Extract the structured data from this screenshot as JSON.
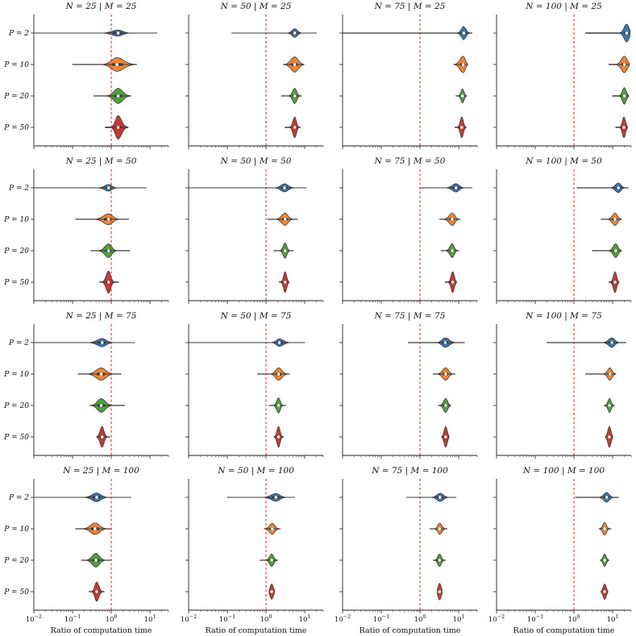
{
  "chart_data": {
    "type": "violin",
    "xscale": "log",
    "xlim": [
      0.01,
      30
    ],
    "xticks": [
      {
        "value": 0.01,
        "base": "10",
        "exp": "−2"
      },
      {
        "value": 0.1,
        "base": "10",
        "exp": "−1"
      },
      {
        "value": 1,
        "base": "10",
        "exp": "0"
      },
      {
        "value": 10,
        "base": "10",
        "exp": "1"
      }
    ],
    "xlabel": "Ratio of computation time",
    "reference_line": 1,
    "row_labels": [
      "P = 2",
      "P = 10",
      "P = 20",
      "P = 50"
    ],
    "colors": [
      "#3a76af",
      "#ef8536",
      "#519e3e",
      "#c53a32"
    ],
    "panels": [
      {
        "title": "N = 25 | M = 25",
        "series": [
          {
            "min": 0.01,
            "q1": 1.1,
            "median": 1.5,
            "q3": 1.9,
            "max": 15,
            "width": 0.22
          },
          {
            "min": 0.1,
            "q1": 1.05,
            "median": 1.4,
            "q3": 2.0,
            "max": 4.5,
            "width": 0.5
          },
          {
            "min": 0.35,
            "q1": 1.2,
            "median": 1.5,
            "q3": 1.9,
            "max": 3.2,
            "width": 0.55
          },
          {
            "min": 0.7,
            "q1": 1.3,
            "median": 1.5,
            "q3": 1.8,
            "max": 2.7,
            "width": 0.85
          }
        ]
      },
      {
        "title": "N = 50 | M = 25",
        "series": [
          {
            "min": 0.13,
            "q1": 4.8,
            "median": 5.5,
            "q3": 6.3,
            "max": 20,
            "width": 0.32
          },
          {
            "min": 2.8,
            "q1": 4.5,
            "median": 5.5,
            "q3": 6.6,
            "max": 9.5,
            "width": 0.55
          },
          {
            "min": 2.5,
            "q1": 4.9,
            "median": 5.5,
            "q3": 6.1,
            "max": 8.2,
            "width": 0.55
          },
          {
            "min": 3.1,
            "q1": 5.0,
            "median": 5.5,
            "q3": 6.0,
            "max": 7.6,
            "width": 0.75
          }
        ]
      },
      {
        "title": "N = 75 | M = 25",
        "series": [
          {
            "min": 0.01,
            "q1": 12,
            "median": 13.5,
            "q3": 15,
            "max": 22,
            "width": 0.5
          },
          {
            "min": 7.5,
            "q1": 11,
            "median": 13,
            "q3": 14.5,
            "max": 17,
            "width": 0.6
          },
          {
            "min": 8.5,
            "q1": 11.5,
            "median": 12.5,
            "q3": 13.5,
            "max": 16,
            "width": 0.5
          },
          {
            "min": 8.0,
            "q1": 11.5,
            "median": 12,
            "q3": 13,
            "max": 15.5,
            "width": 0.75
          }
        ]
      },
      {
        "title": "N = 100 | M = 25",
        "series": [
          {
            "min": 2.0,
            "q1": 20,
            "median": 23,
            "q3": 26,
            "max": 28,
            "width": 0.65
          },
          {
            "min": 8.0,
            "q1": 17,
            "median": 20,
            "q3": 23,
            "max": 27,
            "width": 0.6
          },
          {
            "min": 10,
            "q1": 18,
            "median": 20,
            "q3": 22,
            "max": 26,
            "width": 0.6
          },
          {
            "min": 12,
            "q1": 18,
            "median": 19.5,
            "q3": 21,
            "max": 24,
            "width": 0.75
          }
        ]
      },
      {
        "title": "N = 25 | M = 50",
        "series": [
          {
            "min": 0.01,
            "q1": 0.7,
            "median": 0.85,
            "q3": 1.0,
            "max": 8.0,
            "width": 0.25
          },
          {
            "min": 0.12,
            "q1": 0.65,
            "median": 0.85,
            "q3": 1.05,
            "max": 2.8,
            "width": 0.4
          },
          {
            "min": 0.3,
            "q1": 0.7,
            "median": 0.85,
            "q3": 1.0,
            "max": 3.0,
            "width": 0.5
          },
          {
            "min": 0.5,
            "q1": 0.75,
            "median": 0.85,
            "q3": 0.95,
            "max": 1.5,
            "width": 0.8
          }
        ]
      },
      {
        "title": "N = 50 | M = 50",
        "series": [
          {
            "min": 0.01,
            "q1": 2.5,
            "median": 3.0,
            "q3": 3.6,
            "max": 11,
            "width": 0.3
          },
          {
            "min": 1.1,
            "q1": 2.6,
            "median": 3.1,
            "q3": 3.6,
            "max": 6.5,
            "width": 0.45
          },
          {
            "min": 1.6,
            "q1": 2.8,
            "median": 3.1,
            "q3": 3.4,
            "max": 5.0,
            "width": 0.55
          },
          {
            "min": 2.2,
            "q1": 2.9,
            "median": 3.1,
            "q3": 3.3,
            "max": 3.9,
            "width": 0.75
          }
        ]
      },
      {
        "title": "N = 75 | M = 50",
        "series": [
          {
            "min": 1.0,
            "q1": 7.0,
            "median": 8.5,
            "q3": 10,
            "max": 22,
            "width": 0.3
          },
          {
            "min": 3.2,
            "q1": 5.8,
            "median": 6.8,
            "q3": 7.8,
            "max": 11,
            "width": 0.45
          },
          {
            "min": 3.5,
            "q1": 6.0,
            "median": 6.8,
            "q3": 7.5,
            "max": 10,
            "width": 0.5
          },
          {
            "min": 4.5,
            "q1": 6.4,
            "median": 7.0,
            "q3": 7.6,
            "max": 8.8,
            "width": 0.75
          }
        ]
      },
      {
        "title": "N = 100 | M = 50",
        "series": [
          {
            "min": 1.2,
            "q1": 12,
            "median": 14,
            "q3": 16,
            "max": 25,
            "width": 0.35
          },
          {
            "min": 5.0,
            "q1": 10,
            "median": 11.5,
            "q3": 13,
            "max": 17,
            "width": 0.45
          },
          {
            "min": 3.0,
            "q1": 10.5,
            "median": 12,
            "q3": 13.5,
            "max": 17,
            "width": 0.5
          },
          {
            "min": 8.0,
            "q1": 10.5,
            "median": 11.5,
            "q3": 12.5,
            "max": 14.5,
            "width": 0.75
          }
        ]
      },
      {
        "title": "N = 25 | M = 75",
        "series": [
          {
            "min": 0.01,
            "q1": 0.45,
            "median": 0.58,
            "q3": 0.72,
            "max": 4.0,
            "width": 0.3
          },
          {
            "min": 0.14,
            "q1": 0.42,
            "median": 0.55,
            "q3": 0.7,
            "max": 1.8,
            "width": 0.45
          },
          {
            "min": 0.28,
            "q1": 0.45,
            "median": 0.55,
            "q3": 0.68,
            "max": 2.2,
            "width": 0.5
          },
          {
            "min": 0.42,
            "q1": 0.52,
            "median": 0.58,
            "q3": 0.64,
            "max": 0.9,
            "width": 0.75
          }
        ]
      },
      {
        "title": "N = 50 | M = 75",
        "series": [
          {
            "min": 0.01,
            "q1": 1.9,
            "median": 2.2,
            "q3": 2.7,
            "max": 10,
            "width": 0.28
          },
          {
            "min": 0.6,
            "q1": 1.8,
            "median": 2.1,
            "q3": 2.5,
            "max": 4.0,
            "width": 0.45
          },
          {
            "min": 1.2,
            "q1": 1.9,
            "median": 2.1,
            "q3": 2.3,
            "max": 3.2,
            "width": 0.55
          },
          {
            "min": 1.6,
            "q1": 1.95,
            "median": 2.1,
            "q3": 2.25,
            "max": 2.8,
            "width": 0.75
          }
        ]
      },
      {
        "title": "N = 75 | M = 75",
        "series": [
          {
            "min": 0.5,
            "q1": 3.8,
            "median": 4.5,
            "q3": 5.5,
            "max": 14,
            "width": 0.35
          },
          {
            "min": 2.2,
            "q1": 3.9,
            "median": 4.6,
            "q3": 5.3,
            "max": 8.0,
            "width": 0.45
          },
          {
            "min": 3.0,
            "q1": 4.1,
            "median": 4.6,
            "q3": 5.1,
            "max": 6.2,
            "width": 0.5
          },
          {
            "min": 3.6,
            "q1": 4.3,
            "median": 4.6,
            "q3": 4.9,
            "max": 5.6,
            "width": 0.75
          }
        ]
      },
      {
        "title": "N = 100 | M = 75",
        "series": [
          {
            "min": 0.2,
            "q1": 8.0,
            "median": 9.5,
            "q3": 11,
            "max": 22,
            "width": 0.35
          },
          {
            "min": 2.0,
            "q1": 7.5,
            "median": 8.5,
            "q3": 9.5,
            "max": 12,
            "width": 0.45
          },
          {
            "min": 6.0,
            "q1": 7.6,
            "median": 8.3,
            "q3": 9.0,
            "max": 11,
            "width": 0.5
          },
          {
            "min": 6.5,
            "q1": 7.8,
            "median": 8.2,
            "q3": 8.7,
            "max": 10,
            "width": 0.75
          }
        ]
      },
      {
        "title": "N = 25 | M = 100",
        "series": [
          {
            "min": 0.01,
            "q1": 0.33,
            "median": 0.42,
            "q3": 0.52,
            "max": 3.2,
            "width": 0.32
          },
          {
            "min": 0.12,
            "q1": 0.3,
            "median": 0.38,
            "q3": 0.48,
            "max": 1.0,
            "width": 0.42
          },
          {
            "min": 0.17,
            "q1": 0.33,
            "median": 0.4,
            "q3": 0.48,
            "max": 0.95,
            "width": 0.5
          },
          {
            "min": 0.27,
            "q1": 0.38,
            "median": 0.42,
            "q3": 0.47,
            "max": 0.65,
            "width": 0.7
          }
        ]
      },
      {
        "title": "N = 50 | M = 100",
        "series": [
          {
            "min": 0.1,
            "q1": 1.4,
            "median": 1.8,
            "q3": 2.2,
            "max": 5.5,
            "width": 0.28
          },
          {
            "min": 0.9,
            "q1": 1.25,
            "median": 1.45,
            "q3": 1.65,
            "max": 2.3,
            "width": 0.4
          },
          {
            "min": 0.7,
            "q1": 1.25,
            "median": 1.4,
            "q3": 1.55,
            "max": 2.0,
            "width": 0.45
          },
          {
            "min": 1.2,
            "q1": 1.3,
            "median": 1.4,
            "q3": 1.5,
            "max": 1.65,
            "width": 0.55
          }
        ]
      },
      {
        "title": "N = 75 | M = 100",
        "series": [
          {
            "min": 0.45,
            "q1": 2.8,
            "median": 3.3,
            "q3": 3.9,
            "max": 8.5,
            "width": 0.3
          },
          {
            "min": 1.8,
            "q1": 2.9,
            "median": 3.2,
            "q3": 3.6,
            "max": 5.0,
            "width": 0.4
          },
          {
            "min": 2.2,
            "q1": 2.9,
            "median": 3.2,
            "q3": 3.5,
            "max": 4.5,
            "width": 0.45
          },
          {
            "min": 2.8,
            "q1": 3.05,
            "median": 3.2,
            "q3": 3.35,
            "max": 3.7,
            "width": 0.6
          }
        ]
      },
      {
        "title": "N = 100 | M = 100",
        "series": [
          {
            "min": 1.1,
            "q1": 6.0,
            "median": 7.0,
            "q3": 8.0,
            "max": 14,
            "width": 0.35
          },
          {
            "min": 4.5,
            "q1": 5.6,
            "median": 6.2,
            "q3": 6.8,
            "max": 9.0,
            "width": 0.45
          },
          {
            "min": 4.8,
            "q1": 5.7,
            "median": 6.2,
            "q3": 6.7,
            "max": 8.0,
            "width": 0.45
          },
          {
            "min": 5.0,
            "q1": 5.9,
            "median": 6.2,
            "q3": 6.5,
            "max": 7.5,
            "width": 0.55
          }
        ]
      }
    ]
  }
}
